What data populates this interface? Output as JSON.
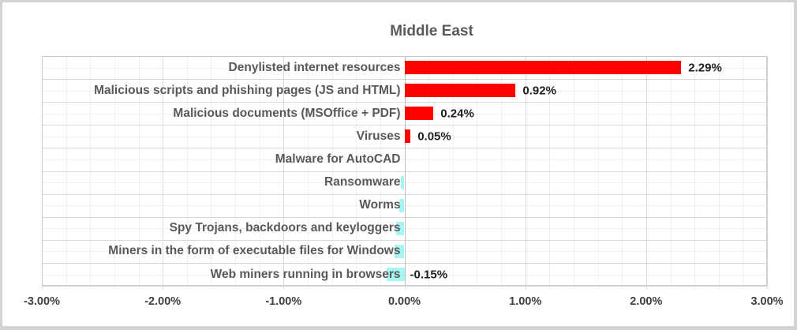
{
  "chart_data": {
    "type": "bar",
    "orientation": "horizontal",
    "title": "Middle East",
    "categories": [
      "Denylisted internet resources",
      "Malicious scripts and phishing pages (JS and HTML)",
      "Malicious documents (MSOffice + PDF)",
      "Viruses",
      "Malware for AutoCAD",
      "Ransomware",
      "Worms",
      "Spy Trojans, backdoors and keyloggers",
      "Miners in the form of executable files for Windows",
      "Web miners running in browsers"
    ],
    "values": [
      2.29,
      0.92,
      0.24,
      0.05,
      0.0,
      -0.03,
      -0.04,
      -0.07,
      -0.08,
      -0.15
    ],
    "data_labels": [
      "2.29%",
      "0.92%",
      "0.24%",
      "0.05%",
      "",
      "",
      "",
      "",
      "",
      "-0.15%"
    ],
    "xlabel": "",
    "ylabel": "",
    "xlim": [
      -3,
      3
    ],
    "x_tick_values": [
      -3,
      -2,
      -1,
      0,
      1,
      2,
      3
    ],
    "x_tick_labels": [
      "-3.00%",
      "-2.00%",
      "-1.00%",
      "0.00%",
      "1.00%",
      "2.00%",
      "3.00%"
    ],
    "grid": {
      "visible": true,
      "minor_step_pct": 0.2,
      "major_step_pct": 1.0
    },
    "legend": "none",
    "colors": {
      "positive_bar": "#fe0000",
      "negative_bar": "#a8f6f3",
      "title_text": "#595959",
      "category_text": "#595959",
      "data_label_text": "#1f1f1f",
      "tick_text": "#404040",
      "major_grid": "#d9d9d9",
      "minor_grid": "#f0f0f0",
      "plot_border": "#c9c9c9",
      "frame_border": "#d3d3d3"
    }
  }
}
